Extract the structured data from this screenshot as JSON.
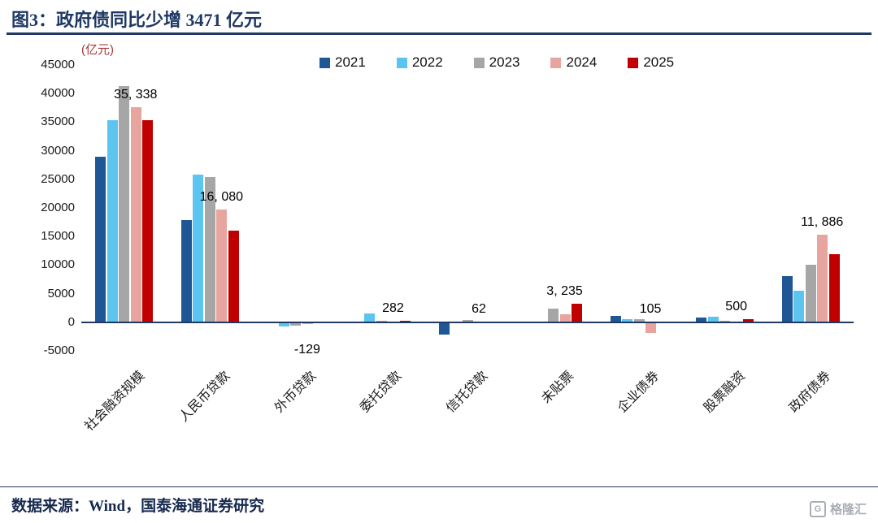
{
  "title": "图3：政府债同比少增 3471 亿元",
  "footer": {
    "source": "数据来源：Wind，国泰海通证券研究",
    "watermark": "格隆汇",
    "watermark_initial": "G"
  },
  "colors": {
    "title": "#1F3864",
    "axis_line": "#1F3864",
    "axis_text": "#1a1a1a",
    "unit_label": "#A03A38"
  },
  "chart_data": {
    "type": "bar",
    "title": "图3：政府债同比少增 3471 亿元",
    "unit_label": "(亿元)",
    "xlabel": "",
    "ylabel": "(亿元)",
    "ylim": [
      -5000,
      45000
    ],
    "ytick_step": 5000,
    "yticks": [
      45000,
      40000,
      35000,
      30000,
      25000,
      20000,
      15000,
      10000,
      5000,
      0,
      -5000
    ],
    "grid": false,
    "legend_position": "top",
    "categories": [
      "社会融资规模",
      "人民币贷款",
      "外币贷款",
      "委托贷款",
      "信托贷款",
      "未贴票",
      "企业债券",
      "股票融资",
      "政府债券"
    ],
    "series": [
      {
        "name": "2021",
        "color": "#1F5796",
        "values": [
          29000,
          17800,
          -60,
          100,
          -2100,
          15,
          1100,
          800,
          8100
        ]
      },
      {
        "name": "2022",
        "color": "#5BC5F0",
        "values": [
          35400,
          25800,
          -700,
          1500,
          -200,
          -150,
          500,
          1000,
          5500
        ]
      },
      {
        "name": "2023",
        "color": "#A6A6A6",
        "values": [
          41300,
          25400,
          -580,
          210,
          400,
          2400,
          600,
          300,
          10000
        ]
      },
      {
        "name": "2024",
        "color": "#E8A49E",
        "values": [
          37634,
          19700,
          -320,
          -100,
          -130,
          1400,
          -1900,
          130,
          15357
        ]
      },
      {
        "name": "2025",
        "color": "#C00000",
        "values": [
          35338,
          16080,
          -129,
          282,
          62,
          3235,
          105,
          500,
          11886
        ]
      }
    ],
    "data_labels": [
      {
        "category_index": 0,
        "text": "35, 338",
        "value": 35338
      },
      {
        "category_index": 1,
        "text": "16, 080",
        "value": 16080
      },
      {
        "category_index": 2,
        "text": "-129",
        "value": -129
      },
      {
        "category_index": 3,
        "text": "282",
        "value": 282
      },
      {
        "category_index": 4,
        "text": "62",
        "value": 62
      },
      {
        "category_index": 5,
        "text": "3, 235",
        "value": 3235
      },
      {
        "category_index": 6,
        "text": "105",
        "value": 105
      },
      {
        "category_index": 7,
        "text": "500",
        "value": 500
      },
      {
        "category_index": 8,
        "text": "11, 886",
        "value": 11886
      }
    ]
  }
}
